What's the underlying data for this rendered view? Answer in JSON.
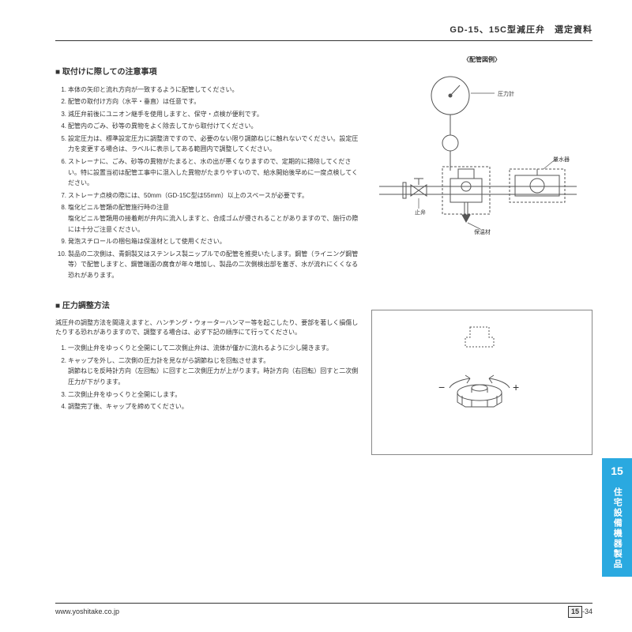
{
  "header": {
    "title": "GD-15、15C型減圧弁　選定資料"
  },
  "section1": {
    "heading": "■ 取付けに際しての注意事項",
    "items": [
      "本体の矢印と流れ方向が一致するように配管してください。",
      "配管の取付け方向（水平・垂直）は任意です。",
      "減圧弁前後にユニオン継手を使用しますと、保守・点検が便利です。",
      "配管内のごみ、砂等の異物をよく除去してから取付けてください。",
      "設定圧力は、標準設定圧力に調整済ですので、必要のない限り調節ねじに触れないでください。設定圧力を変更する場合は、ラベルに表示してある範囲内で調整してください。",
      "ストレーナに、ごみ、砂等の異物がたまると、水の出が悪くなりますので、定期的に掃除してください。特に設置当初は配管工事中に混入した異物がたまりやすいので、給水開始後早めに一度点検してください。",
      "ストレーナ点検の際には、50mm（GD-15C型は55mm）以上のスペースが必要です。",
      "塩化ビニル管類の配管施行時の注意\n塩化ビニル管類用の接着剤が弁内に流入しますと、合成ゴムが侵されることがありますので、施行の際には十分ご注意ください。",
      "発泡スチロールの梱包箱は保温材として使用ください。",
      "製品の二次側は、青銅製又はステンレス製ニップルでの配管を推奨いたします。鋼管（ライニング鋼管等）で配管しますと、鋼管端面の腐食が年々増加し、製品の二次側検出部を塞ぎ、水が流れにくくなる恐れがあります。"
    ]
  },
  "diagram1": {
    "title": "〈配管図例〉",
    "labels": {
      "gauge": "圧力計",
      "meter": "量水器",
      "insul": "保温材",
      "stop": "止弁"
    }
  },
  "section2": {
    "heading": "■ 圧力調整方法",
    "intro": "減圧弁の調整方法を間違えますと、ハンチング・ウォーターハンマー等を起こしたり、要部を著しく損傷したりする恐れがありますので、調整する場合は、必ず下記の順序にて行ってください。",
    "items": [
      "一次側止弁をゆっくりと全開にして二次側止弁は、流体が僅かに流れるように少し開きます。",
      "キャップを外し、二次側の圧力計を見ながら調節ねじを回転させます。\n調節ねじを反時計方向（左回転）に回すと二次側圧力が上がります。時計方向（右回転）回すと二次側圧力が下がります。",
      "二次側止弁をゆっくりと全開にします。",
      "調整完了後、キャップを締めてください。"
    ]
  },
  "sidetab": {
    "num": "15",
    "text": "住宅設備機器製品"
  },
  "footer": {
    "url": "www.yoshitake.co.jp",
    "section": "15",
    "page": "-34"
  }
}
